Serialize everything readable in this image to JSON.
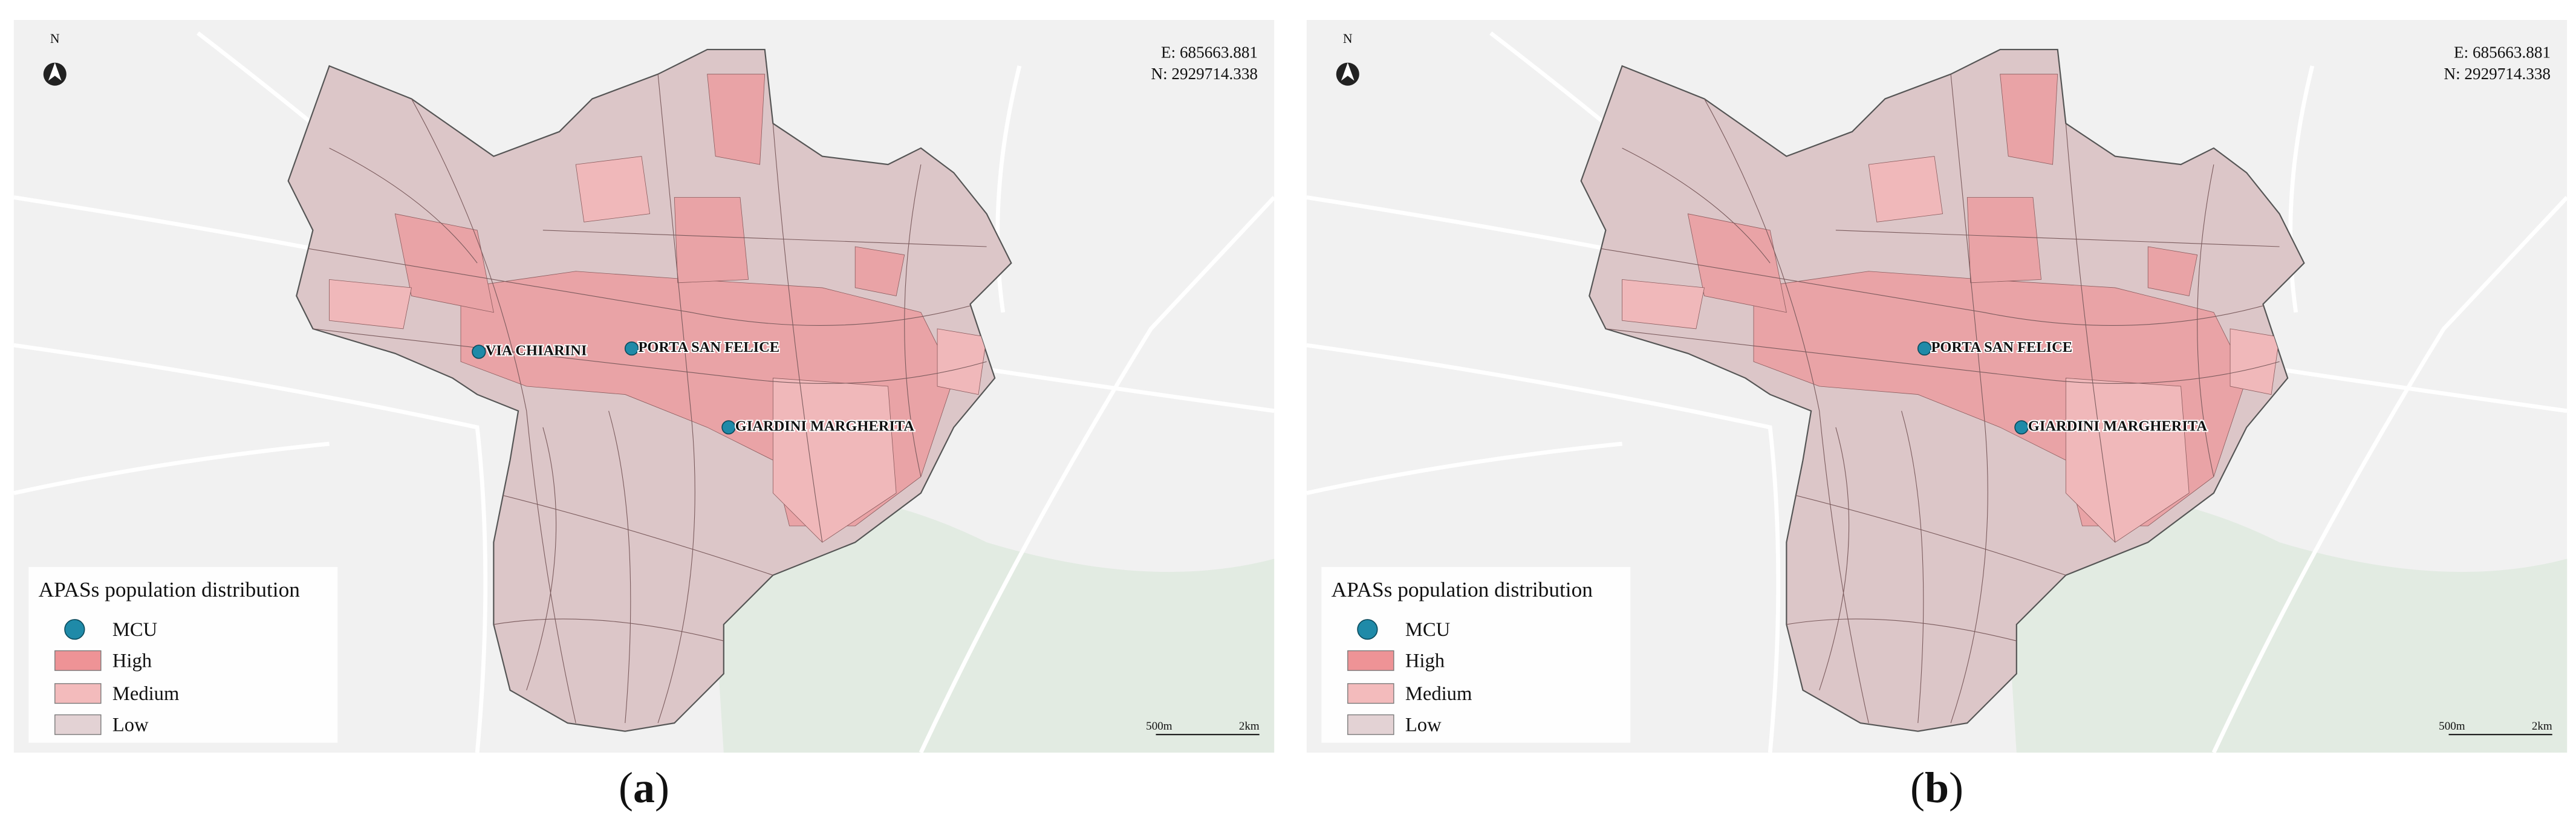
{
  "panels": [
    {
      "coords": {
        "e": "E: 685663.881",
        "n": "N: 2929714.338"
      },
      "north": "N",
      "points": [
        {
          "label": "VIA CHIARINI"
        },
        {
          "label": "PORTA SAN FELICE"
        },
        {
          "label": "GIARDINI MARGHERITA"
        }
      ],
      "legend": {
        "title": "APASs population distribution",
        "items": [
          "MCU",
          "High",
          "Medium",
          "Low"
        ]
      },
      "scale": {
        "left": "500m",
        "right": "2km"
      },
      "caption": {
        "open": "(",
        "letter": "a",
        "close": ")"
      }
    },
    {
      "coords": {
        "e": "E: 685663.881",
        "n": "N: 2929714.338"
      },
      "north": "N",
      "points": [
        {
          "label": "PORTA SAN FELICE"
        },
        {
          "label": "GIARDINI MARGHERITA"
        }
      ],
      "legend": {
        "title": "APASs population distribution",
        "items": [
          "MCU",
          "High",
          "Medium",
          "Low"
        ]
      },
      "scale": {
        "left": "500m",
        "right": "2km"
      },
      "caption": {
        "open": "(",
        "letter": "b",
        "close": ")"
      }
    }
  ]
}
